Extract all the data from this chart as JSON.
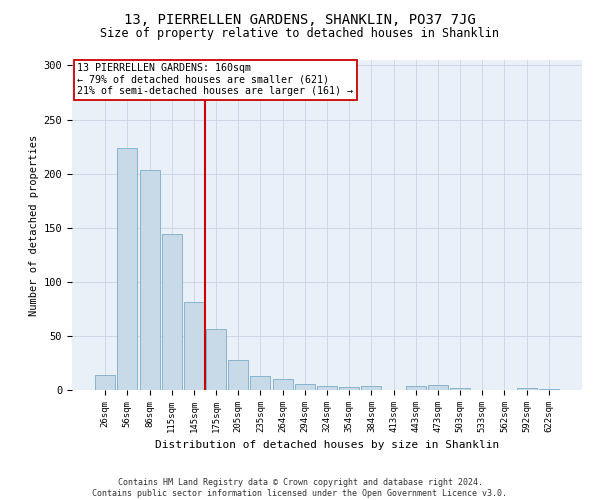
{
  "title": "13, PIERRELLEN GARDENS, SHANKLIN, PO37 7JG",
  "subtitle": "Size of property relative to detached houses in Shanklin",
  "xlabel": "Distribution of detached houses by size in Shanklin",
  "ylabel": "Number of detached properties",
  "bar_color": "#c8d9e8",
  "bar_edge_color": "#7aacc8",
  "grid_color": "#d0d8e8",
  "bg_color": "#eaf0f8",
  "categories": [
    "26sqm",
    "56sqm",
    "86sqm",
    "115sqm",
    "145sqm",
    "175sqm",
    "205sqm",
    "235sqm",
    "264sqm",
    "294sqm",
    "324sqm",
    "354sqm",
    "384sqm",
    "413sqm",
    "443sqm",
    "473sqm",
    "503sqm",
    "533sqm",
    "562sqm",
    "592sqm",
    "622sqm"
  ],
  "values": [
    14,
    224,
    203,
    144,
    81,
    56,
    28,
    13,
    10,
    6,
    4,
    3,
    4,
    0,
    4,
    5,
    2,
    0,
    0,
    2,
    1
  ],
  "property_line_color": "#cc0000",
  "property_line_bin": 5,
  "annotation_text": "13 PIERRELLEN GARDENS: 160sqm\n← 79% of detached houses are smaller (621)\n21% of semi-detached houses are larger (161) →",
  "annotation_box_color": "#ffffff",
  "annotation_box_edge": "#cc0000",
  "footer": "Contains HM Land Registry data © Crown copyright and database right 2024.\nContains public sector information licensed under the Open Government Licence v3.0.",
  "ylim": [
    0,
    305
  ],
  "yticks": [
    0,
    50,
    100,
    150,
    200,
    250,
    300
  ]
}
